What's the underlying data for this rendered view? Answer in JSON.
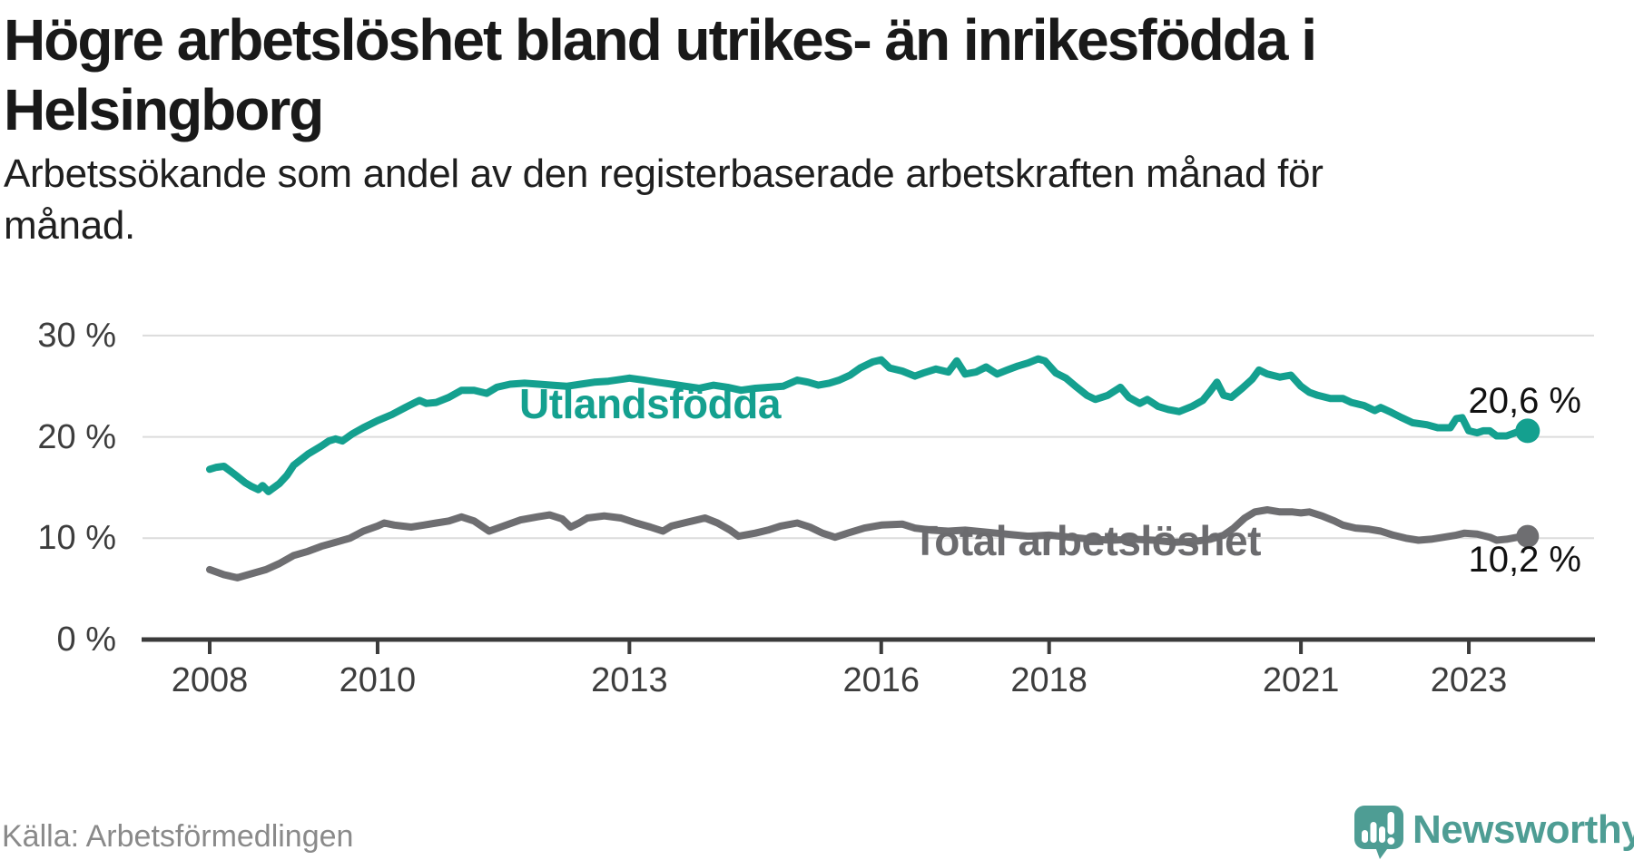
{
  "title": {
    "line1": "Högre arbetslöshet bland utrikes- än inrikesfödda i",
    "line2": "Helsingborg"
  },
  "subtitle": {
    "line1": "Arbetssökande som andel av den registerbaserade arbetskraften månad för",
    "line2": "månad."
  },
  "source": "Källa: Arbetsförmedlingen",
  "brand": {
    "name": "Newsworthy",
    "color": "#4E9D94",
    "icon": "newsworthy-speech-bubble-bar-chart-icon"
  },
  "colors": {
    "background": "#ffffff",
    "grid": "#dcdcdc",
    "axis": "#3b3b3b",
    "tick_label": "#3d3d3d",
    "end_label": "#111111"
  },
  "chart_data": {
    "type": "line",
    "title": "Högre arbetslöshet bland utrikes- än inrikesfödda i Helsingborg",
    "subtitle": "Arbetssökande som andel av den registerbaserade arbetskraften månad för månad.",
    "xlabel": "",
    "ylabel": "",
    "grid": true,
    "legend_position": "inline-on-lines",
    "x_axis": {
      "range": [
        2007.75,
        2024.1
      ],
      "ticks": [
        {
          "label": "2008",
          "year": 2008
        },
        {
          "label": "2010",
          "year": 2010
        },
        {
          "label": "2013",
          "year": 2013
        },
        {
          "label": "2016",
          "year": 2016
        },
        {
          "label": "2018",
          "year": 2018
        },
        {
          "label": "2021",
          "year": 2021
        },
        {
          "label": "2023",
          "year": 2023
        }
      ]
    },
    "y_axis": {
      "range": [
        0,
        32
      ],
      "unit": "%",
      "ticks": [
        {
          "label": "30 %",
          "value": 30
        },
        {
          "label": "20 %",
          "value": 20
        },
        {
          "label": "10 %",
          "value": 10
        },
        {
          "label": "0 %",
          "value": 0
        }
      ]
    },
    "series": [
      {
        "name": "Utlandsfödda",
        "color": "#14a08f",
        "end_label": "20,6 %",
        "end_value": 20.6,
        "points": [
          [
            2008.0,
            16.8
          ],
          [
            2008.08,
            17.0
          ],
          [
            2008.17,
            17.1
          ],
          [
            2008.25,
            16.6
          ],
          [
            2008.33,
            16.1
          ],
          [
            2008.42,
            15.5
          ],
          [
            2008.5,
            15.1
          ],
          [
            2008.58,
            14.8
          ],
          [
            2008.63,
            15.2
          ],
          [
            2008.7,
            14.6
          ],
          [
            2008.83,
            15.4
          ],
          [
            2008.92,
            16.2
          ],
          [
            2009.0,
            17.2
          ],
          [
            2009.17,
            18.3
          ],
          [
            2009.33,
            19.1
          ],
          [
            2009.42,
            19.6
          ],
          [
            2009.5,
            19.8
          ],
          [
            2009.58,
            19.6
          ],
          [
            2009.7,
            20.3
          ],
          [
            2009.83,
            20.9
          ],
          [
            2010.0,
            21.6
          ],
          [
            2010.17,
            22.2
          ],
          [
            2010.33,
            22.9
          ],
          [
            2010.45,
            23.4
          ],
          [
            2010.5,
            23.6
          ],
          [
            2010.58,
            23.3
          ],
          [
            2010.7,
            23.4
          ],
          [
            2010.85,
            23.9
          ],
          [
            2011.0,
            24.6
          ],
          [
            2011.15,
            24.6
          ],
          [
            2011.3,
            24.3
          ],
          [
            2011.42,
            24.9
          ],
          [
            2011.58,
            25.2
          ],
          [
            2011.75,
            25.3
          ],
          [
            2011.92,
            25.2
          ],
          [
            2012.08,
            25.1
          ],
          [
            2012.25,
            25.0
          ],
          [
            2012.42,
            25.2
          ],
          [
            2012.58,
            25.4
          ],
          [
            2012.75,
            25.5
          ],
          [
            2012.92,
            25.7
          ],
          [
            2013.0,
            25.8
          ],
          [
            2013.17,
            25.6
          ],
          [
            2013.33,
            25.4
          ],
          [
            2013.5,
            25.2
          ],
          [
            2013.67,
            25.0
          ],
          [
            2013.83,
            24.8
          ],
          [
            2014.0,
            25.1
          ],
          [
            2014.17,
            24.9
          ],
          [
            2014.33,
            24.6
          ],
          [
            2014.5,
            24.8
          ],
          [
            2014.67,
            24.9
          ],
          [
            2014.83,
            25.0
          ],
          [
            2015.0,
            25.6
          ],
          [
            2015.13,
            25.4
          ],
          [
            2015.25,
            25.1
          ],
          [
            2015.38,
            25.3
          ],
          [
            2015.5,
            25.6
          ],
          [
            2015.63,
            26.1
          ],
          [
            2015.75,
            26.8
          ],
          [
            2015.9,
            27.4
          ],
          [
            2016.0,
            27.6
          ],
          [
            2016.1,
            26.8
          ],
          [
            2016.25,
            26.5
          ],
          [
            2016.4,
            26.0
          ],
          [
            2016.5,
            26.3
          ],
          [
            2016.65,
            26.7
          ],
          [
            2016.8,
            26.4
          ],
          [
            2016.9,
            27.5
          ],
          [
            2017.0,
            26.2
          ],
          [
            2017.13,
            26.4
          ],
          [
            2017.25,
            26.9
          ],
          [
            2017.38,
            26.2
          ],
          [
            2017.5,
            26.6
          ],
          [
            2017.63,
            27.0
          ],
          [
            2017.75,
            27.3
          ],
          [
            2017.87,
            27.7
          ],
          [
            2017.95,
            27.5
          ],
          [
            2018.08,
            26.3
          ],
          [
            2018.2,
            25.8
          ],
          [
            2018.33,
            24.9
          ],
          [
            2018.45,
            24.1
          ],
          [
            2018.55,
            23.7
          ],
          [
            2018.7,
            24.1
          ],
          [
            2018.85,
            24.9
          ],
          [
            2018.95,
            23.9
          ],
          [
            2019.08,
            23.3
          ],
          [
            2019.17,
            23.7
          ],
          [
            2019.3,
            23.0
          ],
          [
            2019.42,
            22.7
          ],
          [
            2019.55,
            22.5
          ],
          [
            2019.7,
            23.0
          ],
          [
            2019.83,
            23.6
          ],
          [
            2019.92,
            24.5
          ],
          [
            2020.0,
            25.4
          ],
          [
            2020.08,
            24.1
          ],
          [
            2020.17,
            23.9
          ],
          [
            2020.3,
            24.8
          ],
          [
            2020.42,
            25.7
          ],
          [
            2020.5,
            26.6
          ],
          [
            2020.6,
            26.2
          ],
          [
            2020.75,
            25.9
          ],
          [
            2020.88,
            26.1
          ],
          [
            2021.0,
            25.0
          ],
          [
            2021.1,
            24.4
          ],
          [
            2021.2,
            24.1
          ],
          [
            2021.35,
            23.8
          ],
          [
            2021.5,
            23.8
          ],
          [
            2021.6,
            23.4
          ],
          [
            2021.75,
            23.1
          ],
          [
            2021.88,
            22.6
          ],
          [
            2021.95,
            22.9
          ],
          [
            2022.08,
            22.4
          ],
          [
            2022.2,
            21.9
          ],
          [
            2022.33,
            21.4
          ],
          [
            2022.5,
            21.2
          ],
          [
            2022.63,
            20.9
          ],
          [
            2022.78,
            20.9
          ],
          [
            2022.85,
            21.8
          ],
          [
            2022.92,
            21.9
          ],
          [
            2023.0,
            20.6
          ],
          [
            2023.1,
            20.4
          ],
          [
            2023.17,
            20.6
          ],
          [
            2023.25,
            20.6
          ],
          [
            2023.33,
            20.1
          ],
          [
            2023.45,
            20.1
          ],
          [
            2023.55,
            20.4
          ],
          [
            2023.65,
            20.7
          ],
          [
            2023.7,
            20.6
          ]
        ]
      },
      {
        "name": "Total arbetslöshet",
        "color": "#6e6e71",
        "label_color": "#6b6b6e",
        "end_label": "10,2 %",
        "end_value": 10.2,
        "points": [
          [
            2008.0,
            6.9
          ],
          [
            2008.17,
            6.4
          ],
          [
            2008.33,
            6.1
          ],
          [
            2008.5,
            6.5
          ],
          [
            2008.67,
            6.9
          ],
          [
            2008.83,
            7.5
          ],
          [
            2009.0,
            8.3
          ],
          [
            2009.17,
            8.7
          ],
          [
            2009.33,
            9.2
          ],
          [
            2009.5,
            9.6
          ],
          [
            2009.67,
            10.0
          ],
          [
            2009.83,
            10.7
          ],
          [
            2010.0,
            11.2
          ],
          [
            2010.08,
            11.5
          ],
          [
            2010.2,
            11.3
          ],
          [
            2010.4,
            11.1
          ],
          [
            2010.55,
            11.3
          ],
          [
            2010.7,
            11.5
          ],
          [
            2010.85,
            11.7
          ],
          [
            2011.0,
            12.1
          ],
          [
            2011.15,
            11.7
          ],
          [
            2011.33,
            10.7
          ],
          [
            2011.5,
            11.2
          ],
          [
            2011.7,
            11.8
          ],
          [
            2011.9,
            12.1
          ],
          [
            2012.05,
            12.3
          ],
          [
            2012.2,
            11.9
          ],
          [
            2012.3,
            11.1
          ],
          [
            2012.4,
            11.5
          ],
          [
            2012.5,
            12.0
          ],
          [
            2012.7,
            12.2
          ],
          [
            2012.9,
            12.0
          ],
          [
            2013.08,
            11.5
          ],
          [
            2013.25,
            11.1
          ],
          [
            2013.4,
            10.7
          ],
          [
            2013.5,
            11.2
          ],
          [
            2013.7,
            11.6
          ],
          [
            2013.9,
            12.0
          ],
          [
            2014.05,
            11.5
          ],
          [
            2014.2,
            10.8
          ],
          [
            2014.3,
            10.2
          ],
          [
            2014.5,
            10.5
          ],
          [
            2014.65,
            10.8
          ],
          [
            2014.8,
            11.2
          ],
          [
            2015.0,
            11.5
          ],
          [
            2015.15,
            11.1
          ],
          [
            2015.3,
            10.5
          ],
          [
            2015.45,
            10.1
          ],
          [
            2015.6,
            10.5
          ],
          [
            2015.8,
            11.0
          ],
          [
            2016.0,
            11.3
          ],
          [
            2016.25,
            11.4
          ],
          [
            2016.4,
            11.0
          ],
          [
            2016.6,
            10.8
          ],
          [
            2016.8,
            10.7
          ],
          [
            2017.0,
            10.8
          ],
          [
            2017.25,
            10.6
          ],
          [
            2017.5,
            10.4
          ],
          [
            2017.75,
            10.2
          ],
          [
            2018.0,
            10.3
          ],
          [
            2018.25,
            10.1
          ],
          [
            2018.5,
            9.9
          ],
          [
            2018.75,
            9.8
          ],
          [
            2019.0,
            9.9
          ],
          [
            2019.25,
            9.8
          ],
          [
            2019.5,
            9.6
          ],
          [
            2019.75,
            9.7
          ],
          [
            2019.92,
            9.9
          ],
          [
            2020.08,
            10.3
          ],
          [
            2020.2,
            11.0
          ],
          [
            2020.33,
            12.0
          ],
          [
            2020.45,
            12.6
          ],
          [
            2020.6,
            12.8
          ],
          [
            2020.75,
            12.6
          ],
          [
            2020.9,
            12.6
          ],
          [
            2021.0,
            12.5
          ],
          [
            2021.1,
            12.6
          ],
          [
            2021.25,
            12.2
          ],
          [
            2021.4,
            11.7
          ],
          [
            2021.5,
            11.3
          ],
          [
            2021.65,
            11.0
          ],
          [
            2021.8,
            10.9
          ],
          [
            2021.95,
            10.7
          ],
          [
            2022.1,
            10.3
          ],
          [
            2022.25,
            10.0
          ],
          [
            2022.4,
            9.8
          ],
          [
            2022.55,
            9.9
          ],
          [
            2022.7,
            10.1
          ],
          [
            2022.85,
            10.3
          ],
          [
            2022.95,
            10.5
          ],
          [
            2023.1,
            10.4
          ],
          [
            2023.25,
            10.1
          ],
          [
            2023.33,
            9.8
          ],
          [
            2023.45,
            9.9
          ],
          [
            2023.58,
            10.1
          ],
          [
            2023.7,
            10.2
          ]
        ]
      }
    ]
  }
}
